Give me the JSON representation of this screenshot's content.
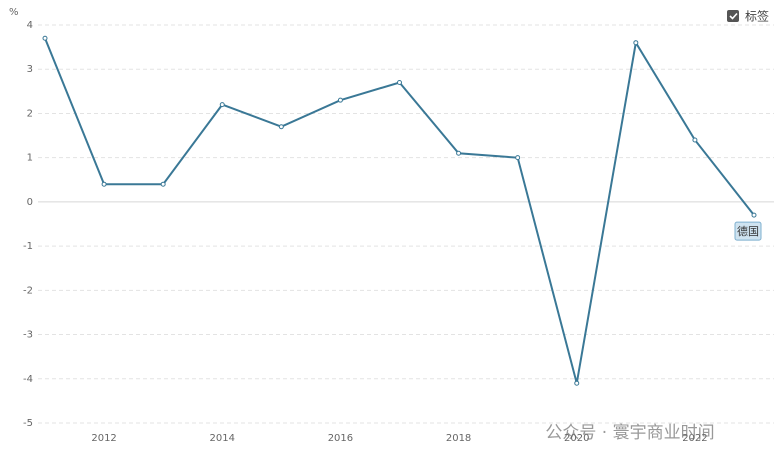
{
  "chart_data": {
    "type": "line",
    "y_unit": "%",
    "toggle_label": "标签",
    "watermark": "公众号 · 寰宇商业时间",
    "x": [
      2011,
      2012,
      2013,
      2014,
      2015,
      2016,
      2017,
      2018,
      2019,
      2020,
      2021,
      2022,
      2023
    ],
    "xlim": [
      2011,
      2023
    ],
    "xticks": [
      2012,
      2014,
      2016,
      2018,
      2020,
      2022
    ],
    "ylim": [
      -5,
      4
    ],
    "yticks": [
      4,
      3,
      2,
      1,
      0,
      -1,
      -2,
      -3,
      -4,
      -5
    ],
    "grid": true,
    "series": [
      {
        "name": "德国",
        "color": "#3a7896",
        "values": [
          3.7,
          0.4,
          0.4,
          2.2,
          1.7,
          2.3,
          2.7,
          1.1,
          1.0,
          -4.1,
          3.6,
          1.4,
          -0.3
        ]
      }
    ]
  }
}
